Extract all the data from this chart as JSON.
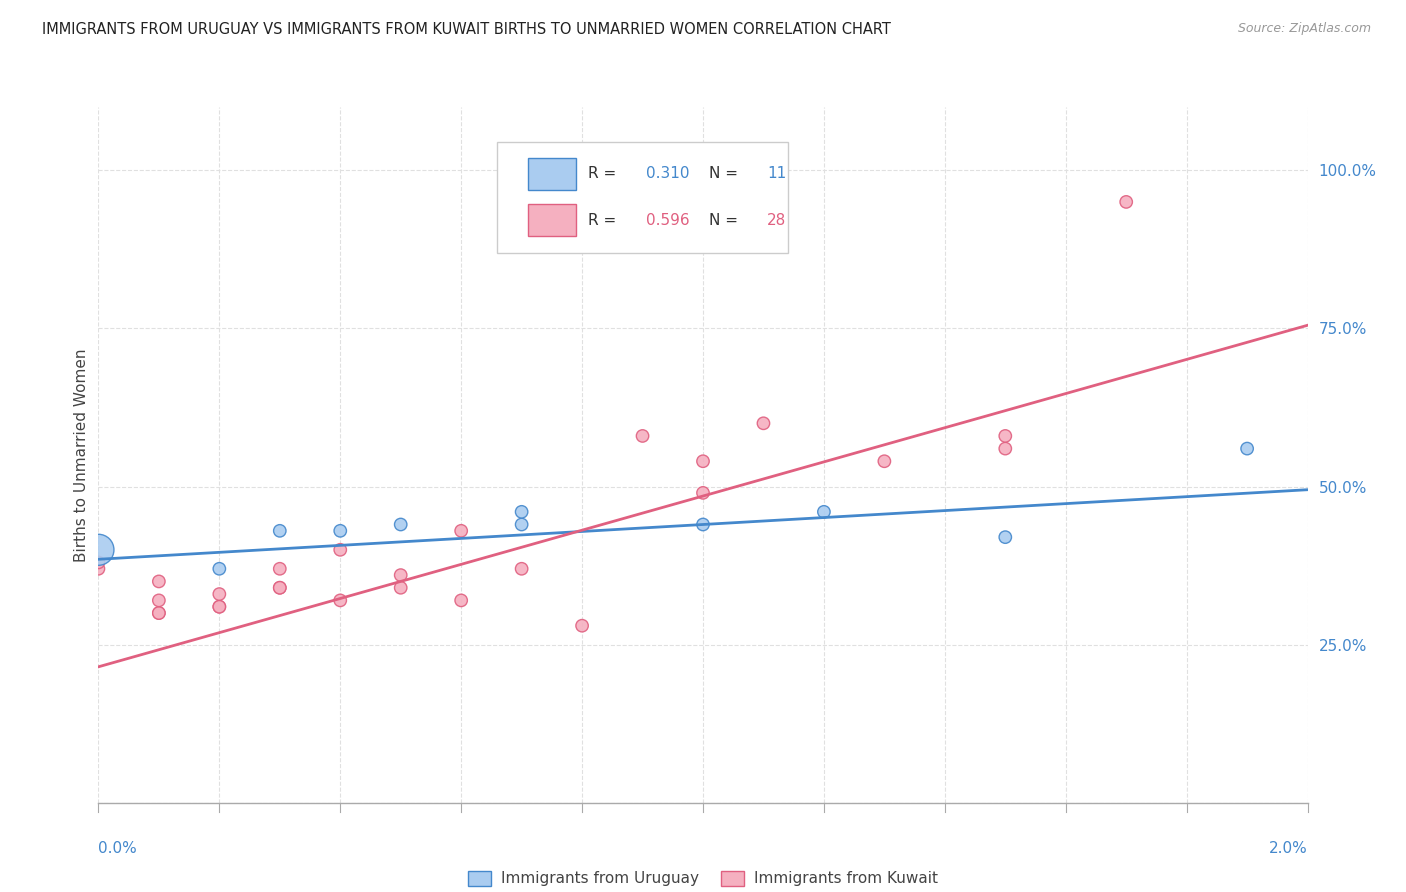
{
  "title": "IMMIGRANTS FROM URUGUAY VS IMMIGRANTS FROM KUWAIT BIRTHS TO UNMARRIED WOMEN CORRELATION CHART",
  "source": "Source: ZipAtlas.com",
  "ylabel": "Births to Unmarried Women",
  "background_color": "#ffffff",
  "grid_color": "#e0e0e0",
  "blue_color": "#aaccf0",
  "pink_color": "#f5b0c0",
  "blue_line_color": "#4488cc",
  "pink_line_color": "#e06080",
  "uruguay_x": [
    0.0,
    0.002,
    0.003,
    0.004,
    0.005,
    0.007,
    0.007,
    0.01,
    0.012,
    0.015,
    0.019
  ],
  "uruguay_y": [
    0.4,
    0.37,
    0.43,
    0.43,
    0.44,
    0.44,
    0.46,
    0.44,
    0.46,
    0.42,
    0.56
  ],
  "uruguay_size": [
    500,
    80,
    80,
    80,
    80,
    80,
    80,
    80,
    80,
    80,
    80
  ],
  "kuwait_x": [
    0.0,
    0.0,
    0.001,
    0.001,
    0.001,
    0.001,
    0.002,
    0.002,
    0.002,
    0.003,
    0.003,
    0.003,
    0.004,
    0.004,
    0.005,
    0.005,
    0.006,
    0.006,
    0.007,
    0.008,
    0.009,
    0.01,
    0.01,
    0.011,
    0.013,
    0.015,
    0.015,
    0.017
  ],
  "kuwait_y": [
    0.37,
    0.38,
    0.3,
    0.3,
    0.32,
    0.35,
    0.31,
    0.31,
    0.33,
    0.34,
    0.34,
    0.37,
    0.32,
    0.4,
    0.34,
    0.36,
    0.43,
    0.32,
    0.37,
    0.28,
    0.58,
    0.49,
    0.54,
    0.6,
    0.54,
    0.56,
    0.58,
    0.95
  ],
  "kuwait_size": [
    80,
    80,
    80,
    80,
    80,
    80,
    80,
    80,
    80,
    80,
    80,
    80,
    80,
    80,
    80,
    80,
    80,
    80,
    80,
    80,
    80,
    80,
    80,
    80,
    80,
    80,
    80,
    80
  ],
  "blue_trend_x": [
    0.0,
    0.02
  ],
  "blue_trend_y": [
    0.385,
    0.495
  ],
  "pink_trend_x": [
    0.0,
    0.02
  ],
  "pink_trend_y": [
    0.215,
    0.755
  ],
  "xlim": [
    0.0,
    0.02
  ],
  "ylim": [
    0.0,
    1.1
  ],
  "legend_r_blue": "0.310",
  "legend_n_blue": "11",
  "legend_r_pink": "0.596",
  "legend_n_pink": "28"
}
